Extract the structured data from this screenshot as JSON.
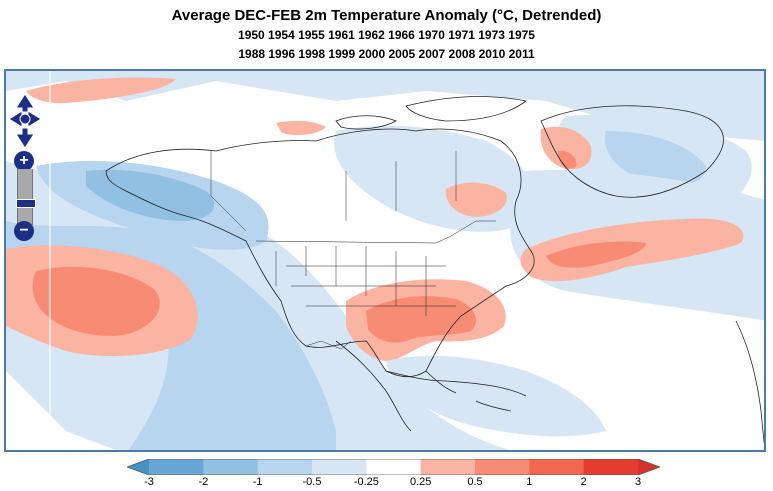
{
  "title": {
    "main": "Average DEC-FEB 2m Temperature Anomaly (°C, Detrended)",
    "years_line1": "1950 1954 1955 1961 1962 1966 1970 1971 1973 1975",
    "years_line2": "1988 1996 1998 1999 2000 2005 2007 2008 2010 2011"
  },
  "map": {
    "region": "North America",
    "variable": "2m Temperature Anomaly",
    "season": "DEC-FEB"
  },
  "controls": {
    "zoom_in_label": "+",
    "zoom_out_label": "−",
    "pan_icons": [
      "arrow-up-icon",
      "arrow-down-icon",
      "arrow-left-icon",
      "arrow-right-icon"
    ]
  },
  "legend": {
    "ticks": [
      "-3",
      "-2",
      "-1",
      "-0.5",
      "-0.25",
      "0.25",
      "0.5",
      "1",
      "2",
      "3"
    ],
    "colors": [
      "#4393c3",
      "#6aa6d5",
      "#92c0e2",
      "#b7d5ee",
      "#d6e6f4",
      "#ffffff",
      "#fbb4a2",
      "#f88b73",
      "#f2674f",
      "#e43c2f",
      "#d6312a"
    ]
  }
}
